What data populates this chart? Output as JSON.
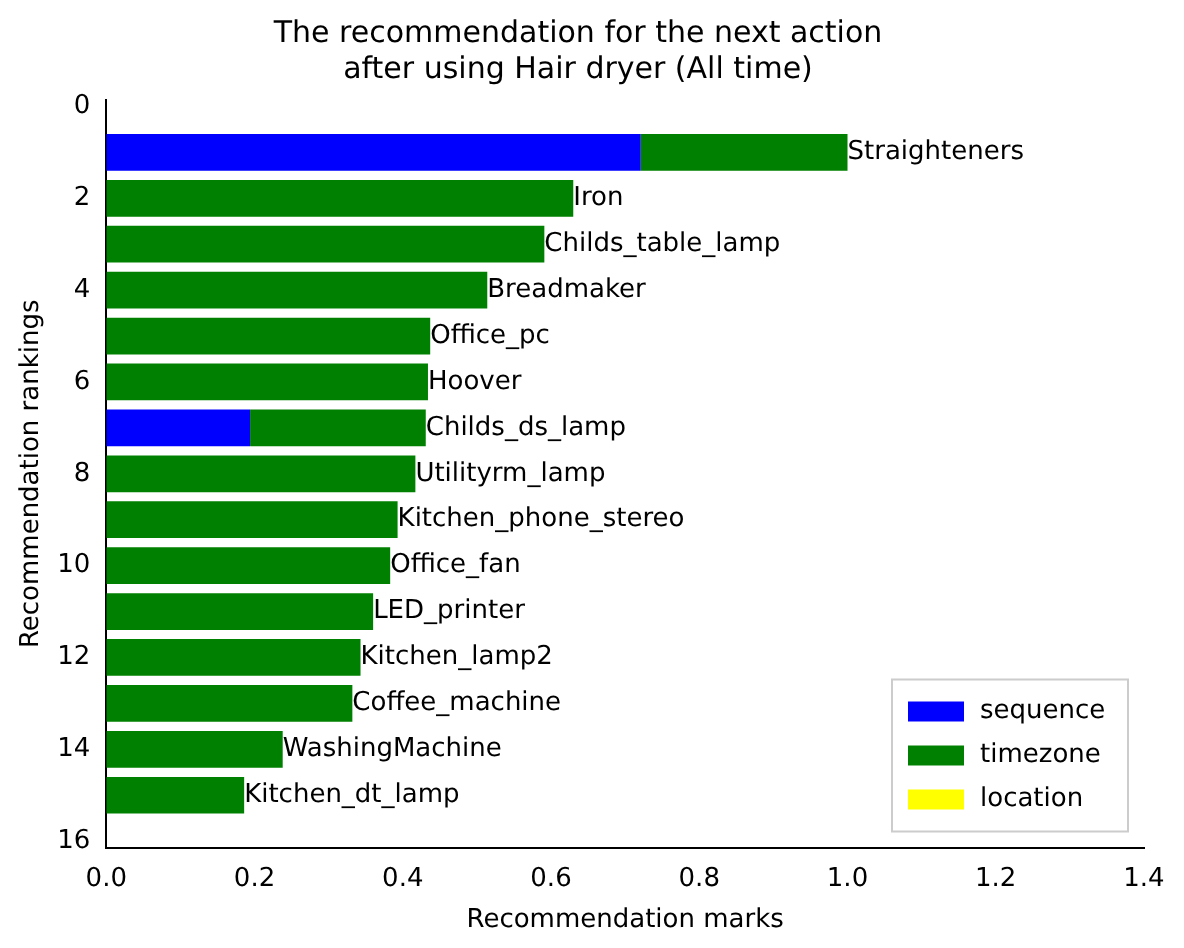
{
  "chart_data": {
    "type": "bar",
    "orientation": "horizontal",
    "stacked": true,
    "title": "The recommendation for the next action\nafter using Hair dryer (All time)",
    "xlabel": "Recommendation marks",
    "ylabel": "Recommendation rankings",
    "x": [
      1,
      2,
      3,
      4,
      5,
      6,
      7,
      8,
      9,
      10,
      11,
      12,
      13,
      14,
      15
    ],
    "series": [
      {
        "name": "sequence",
        "color": "#0000ff",
        "values": [
          0.721,
          0,
          0,
          0,
          0,
          0,
          0.194,
          0,
          0,
          0,
          0,
          0,
          0,
          0,
          0
        ]
      },
      {
        "name": "timezone",
        "color": "#008000",
        "values": [
          0.279,
          0.63,
          0.591,
          0.514,
          0.437,
          0.434,
          0.237,
          0.417,
          0.393,
          0.383,
          0.36,
          0.343,
          0.332,
          0.238,
          0.186
        ]
      },
      {
        "name": "location",
        "color": "#ffff00",
        "values": [
          0,
          0,
          0,
          0,
          0,
          0,
          0,
          0,
          0,
          0,
          0,
          0,
          0,
          0,
          0
        ]
      }
    ],
    "xlim": [
      0,
      1.4
    ],
    "xticks": [
      {
        "value": 0,
        "label": "0.0"
      },
      0.2,
      0.4,
      0.6,
      0.8,
      {
        "value": 1,
        "label": "1.0"
      },
      1.2,
      1.4
    ],
    "ylim": [
      16.14,
      -0.14
    ],
    "yticks": [
      0,
      2,
      4,
      6,
      8,
      10,
      12,
      14,
      16
    ],
    "annotations": [
      {
        "text": "Straighteners",
        "x": 1.0,
        "y": 1
      },
      {
        "text": "Iron",
        "x": 0.63,
        "y": 2
      },
      {
        "text": "Childs_table_lamp",
        "x": 0.591,
        "y": 3
      },
      {
        "text": "Breadmaker",
        "x": 0.514,
        "y": 4
      },
      {
        "text": "Office_pc",
        "x": 0.437,
        "y": 5
      },
      {
        "text": "Hoover",
        "x": 0.434,
        "y": 6
      },
      {
        "text": "Childs_ds_lamp",
        "x": 0.431,
        "y": 7
      },
      {
        "text": "Utilityrm_lamp",
        "x": 0.417,
        "y": 8
      },
      {
        "text": "Kitchen_phone_stereo",
        "x": 0.393,
        "y": 9
      },
      {
        "text": "Office_fan",
        "x": 0.383,
        "y": 10
      },
      {
        "text": "LED_printer",
        "x": 0.36,
        "y": 11
      },
      {
        "text": "Kitchen_lamp2",
        "x": 0.343,
        "y": 12
      },
      {
        "text": "Coffee_machine",
        "x": 0.332,
        "y": 13
      },
      {
        "text": "WashingMachine",
        "x": 0.238,
        "y": 14
      },
      {
        "text": "Kitchen_dt_lamp",
        "x": 0.186,
        "y": 15
      }
    ],
    "legend": "bottom right",
    "grid": false
  }
}
